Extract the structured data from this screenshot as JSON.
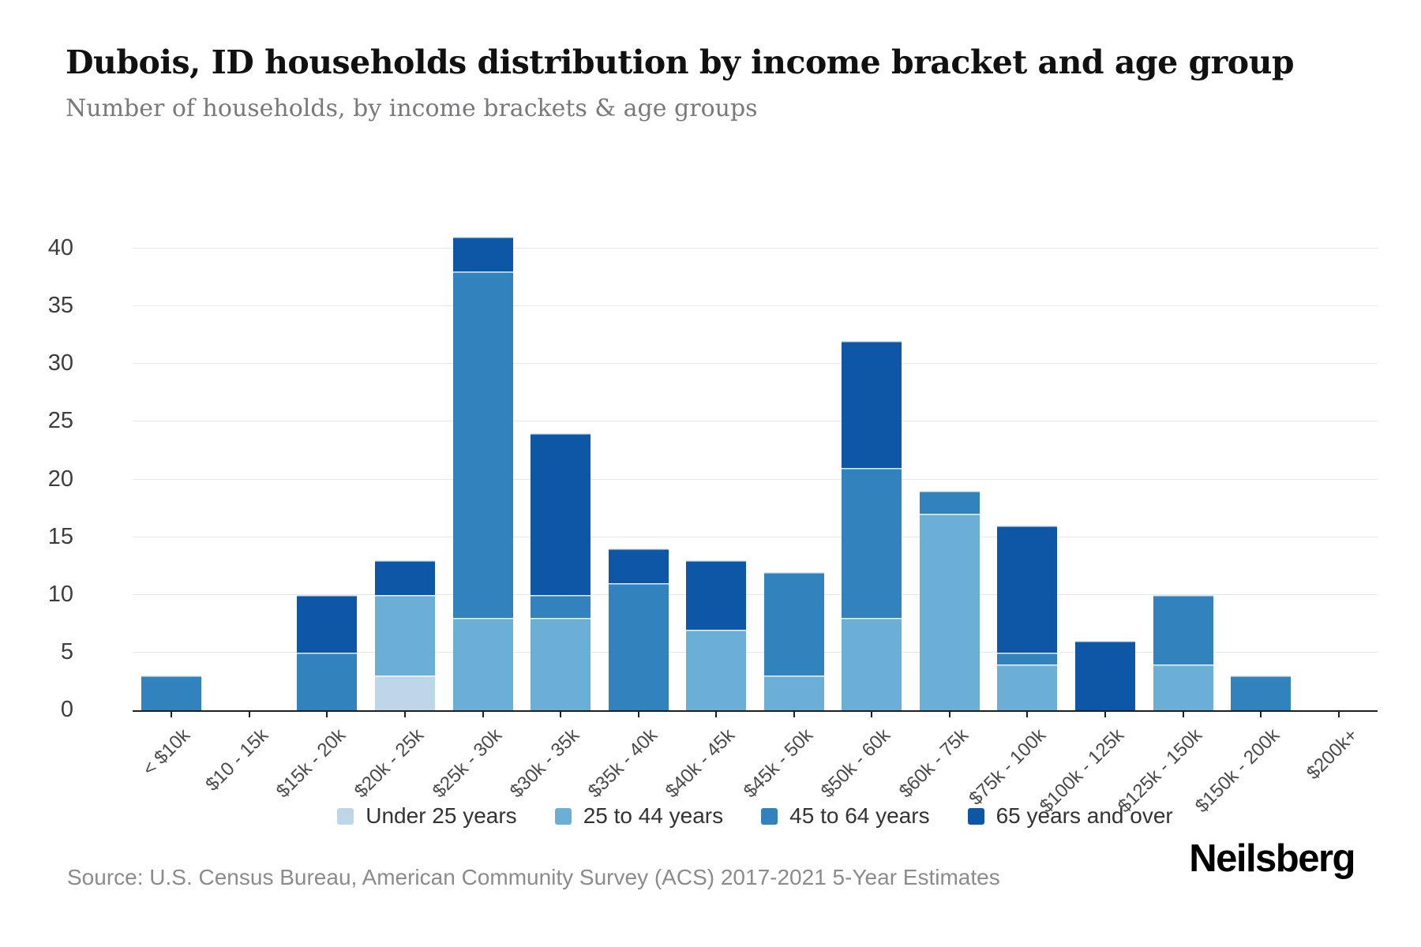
{
  "header": {
    "title": "Dubois, ID households distribution by income bracket and age group",
    "subtitle": "Number of households, by income brackets & age groups"
  },
  "chart_data": {
    "type": "bar",
    "stacked": true,
    "title": "Dubois, ID households distribution by income bracket and age group",
    "xlabel": "",
    "ylabel": "",
    "ylim": [
      0,
      40
    ],
    "ytick_step": 5,
    "grid": true,
    "legend_position": "bottom",
    "categories": [
      "< $10k",
      "$10 - 15k",
      "$15k - 20k",
      "$20k - 25k",
      "$25k - 30k",
      "$30k - 35k",
      "$35k - 40k",
      "$40k - 45k",
      "$45k - 50k",
      "$50k - 60k",
      "$60k - 75k",
      "$75k - 100k",
      "$100k - 125k",
      "$125k - 150k",
      "$150k - 200k",
      "$200k+"
    ],
    "series": [
      {
        "name": "Under 25 years",
        "color": "#bdd7e8",
        "values": [
          0,
          0,
          0,
          3,
          0,
          0,
          0,
          0,
          0,
          0,
          0,
          0,
          0,
          0,
          0,
          0
        ]
      },
      {
        "name": "25 to 44 years",
        "color": "#6baed6",
        "values": [
          0,
          0,
          0,
          7,
          8,
          8,
          0,
          7,
          3,
          8,
          17,
          4,
          0,
          4,
          0,
          0
        ]
      },
      {
        "name": "45 to 64 years",
        "color": "#3182bd",
        "values": [
          3,
          0,
          5,
          0,
          30,
          2,
          11,
          0,
          9,
          13,
          2,
          1,
          0,
          6,
          3,
          0
        ]
      },
      {
        "name": "65 years and over",
        "color": "#0d57a6",
        "values": [
          0,
          0,
          5,
          3,
          3,
          14,
          3,
          6,
          0,
          11,
          0,
          11,
          6,
          0,
          0,
          0
        ]
      }
    ],
    "totals": [
      3,
      0,
      10,
      13,
      41,
      24,
      14,
      13,
      12,
      32,
      19,
      16,
      6,
      10,
      3,
      0
    ]
  },
  "footer": {
    "source": "Source: U.S. Census Bureau, American Community Survey (ACS) 2017-2021 5-Year Estimates",
    "brand": "Neilsberg"
  }
}
